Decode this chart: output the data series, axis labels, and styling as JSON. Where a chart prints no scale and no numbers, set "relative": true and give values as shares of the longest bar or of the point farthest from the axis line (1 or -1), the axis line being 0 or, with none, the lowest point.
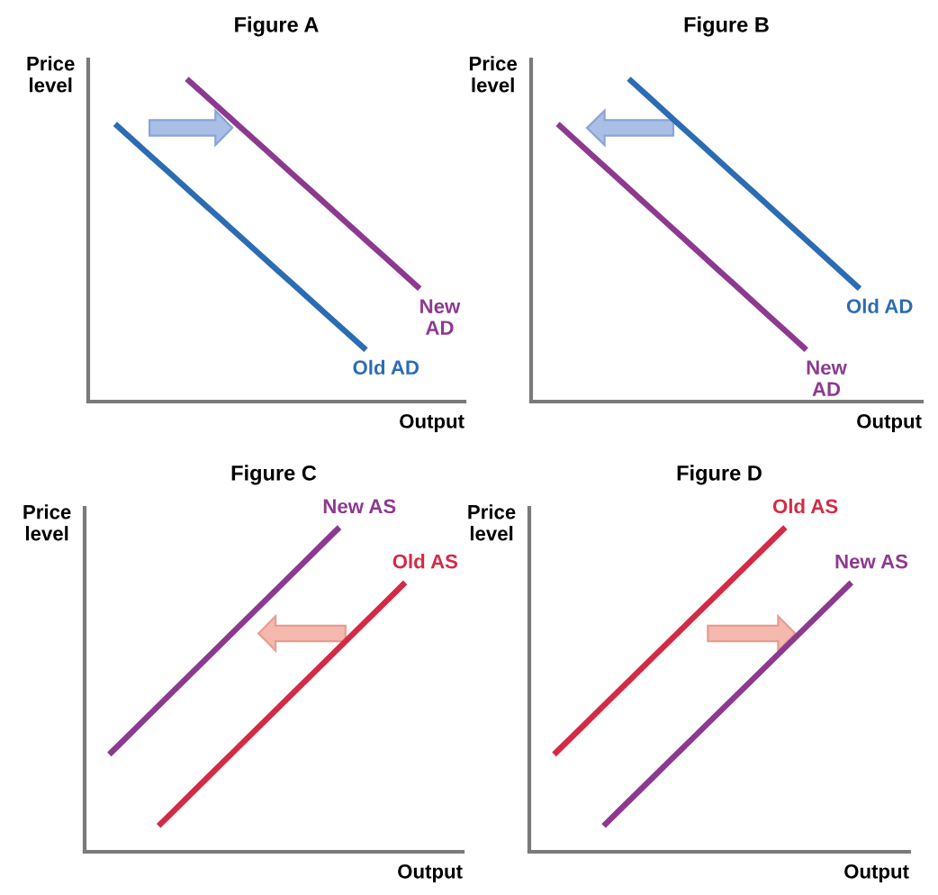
{
  "chart_data": [
    {
      "type": "line",
      "title": "Figure A",
      "xlabel": "Output",
      "ylabel": "Price\nlevel",
      "relative": true,
      "categories": [
        null,
        null,
        null,
        null,
        null,
        null,
        null,
        null,
        null,
        null,
        null,
        null,
        null,
        null,
        null,
        null,
        null,
        null,
        null,
        null,
        null
      ],
      "series": [
        {
          "name": "Old AD",
          "color": "#2b6cb3",
          "values": [
            null,
            0.86,
            0.81,
            0.76,
            0.71,
            0.66,
            0.61,
            0.56,
            0.51,
            0.46,
            0.41,
            0.36,
            0.31,
            0.26,
            0.21,
            0.16,
            null,
            null,
            null,
            null,
            null
          ]
        },
        {
          "name": "New\nAD",
          "color": "#8c3a8f",
          "values": [
            null,
            null,
            null,
            null,
            null,
            1.0,
            0.95,
            0.9,
            0.85,
            0.8,
            0.75,
            0.7,
            0.65,
            0.6,
            0.55,
            0.5,
            0.45,
            0.4,
            0.35,
            null,
            null
          ]
        }
      ]
    },
    {
      "type": "line",
      "title": "Figure B",
      "xlabel": "Output",
      "ylabel": "Price\nlevel",
      "relative": true,
      "categories": [
        null,
        null,
        null,
        null,
        null,
        null,
        null,
        null,
        null,
        null,
        null,
        null,
        null,
        null,
        null,
        null,
        null,
        null,
        null,
        null,
        null,
        null
      ],
      "series": [
        {
          "name": "Old AD",
          "color": "#2b6cb3",
          "values": [
            null,
            null,
            null,
            null,
            null,
            1.0,
            0.95,
            0.9,
            0.85,
            0.8,
            0.75,
            0.7,
            0.65,
            0.6,
            0.55,
            0.5,
            0.45,
            0.4,
            0.35,
            null,
            null,
            null
          ]
        },
        {
          "name": "New\nAD",
          "color": "#8c3a8f",
          "values": [
            null,
            0.86,
            0.81,
            0.76,
            0.71,
            0.66,
            0.61,
            0.56,
            0.51,
            0.46,
            0.41,
            0.36,
            0.31,
            0.26,
            0.21,
            0.16,
            null,
            null,
            null,
            null,
            null,
            null
          ]
        }
      ]
    },
    {
      "type": "line",
      "title": "Figure C",
      "xlabel": "Output",
      "ylabel": "Price\nlevel",
      "relative": true,
      "categories": [
        null,
        null,
        null,
        null,
        null,
        null,
        null,
        null,
        null,
        null,
        null,
        null,
        null,
        null,
        null,
        null,
        null,
        null,
        null,
        null,
        null,
        null,
        null
      ],
      "series": [
        {
          "name": "Old AS",
          "color": "#d42a46",
          "values": [
            null,
            null,
            null,
            null,
            0.08,
            0.13,
            0.18,
            0.23,
            0.28,
            0.33,
            0.38,
            0.43,
            0.48,
            0.53,
            0.58,
            0.63,
            0.68,
            0.73,
            0.78,
            0.83,
            null,
            null,
            null
          ]
        },
        {
          "name": "New AS",
          "color": "#8c3a8f",
          "values": [
            null,
            0.3,
            0.35,
            0.4,
            0.45,
            0.5,
            0.55,
            0.6,
            0.65,
            0.7,
            0.75,
            0.8,
            0.85,
            0.9,
            0.95,
            1.0,
            null,
            null,
            null,
            null,
            null,
            null,
            null
          ]
        }
      ]
    },
    {
      "type": "line",
      "title": "Figure D",
      "xlabel": "Output",
      "ylabel": "Price\nlevel",
      "relative": true,
      "categories": [
        null,
        null,
        null,
        null,
        null,
        null,
        null,
        null,
        null,
        null,
        null,
        null,
        null,
        null,
        null,
        null,
        null,
        null,
        null,
        null,
        null,
        null,
        null
      ],
      "series": [
        {
          "name": "Old AS",
          "color": "#d42a46",
          "values": [
            null,
            0.3,
            0.35,
            0.4,
            0.45,
            0.5,
            0.55,
            0.6,
            0.65,
            0.7,
            0.75,
            0.8,
            0.85,
            0.9,
            0.95,
            1.0,
            null,
            null,
            null,
            null,
            null,
            null,
            null
          ]
        },
        {
          "name": "New AS",
          "color": "#8c3a8f",
          "values": [
            null,
            null,
            null,
            null,
            0.08,
            0.13,
            0.18,
            0.23,
            0.28,
            0.33,
            0.38,
            0.43,
            0.48,
            0.53,
            0.58,
            0.63,
            0.68,
            0.73,
            0.78,
            0.83,
            null,
            null,
            null
          ]
        }
      ]
    }
  ]
}
